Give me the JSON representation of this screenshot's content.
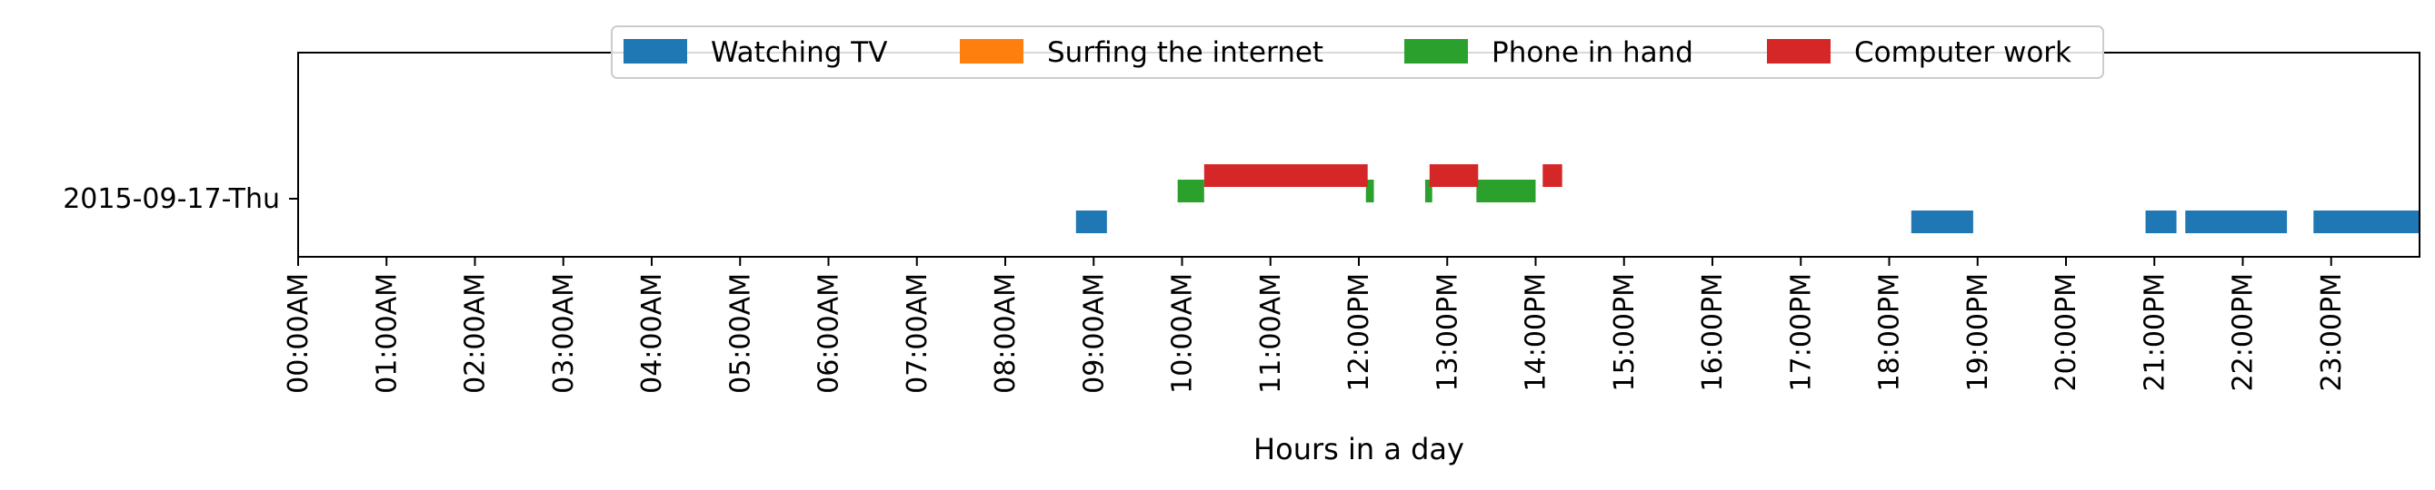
{
  "chart_data": {
    "type": "bar",
    "orientation": "horizontal",
    "title": "",
    "xlabel": "Hours in a day",
    "ylabel": "",
    "xlim": [
      0,
      24
    ],
    "x_tick_labels": [
      "00:00AM",
      "01:00AM",
      "02:00AM",
      "03:00AM",
      "04:00AM",
      "05:00AM",
      "06:00AM",
      "07:00AM",
      "08:00AM",
      "09:00AM",
      "10:00AM",
      "11:00AM",
      "12:00PM",
      "13:00PM",
      "14:00PM",
      "15:00PM",
      "16:00PM",
      "17:00PM",
      "18:00PM",
      "19:00PM",
      "20:00PM",
      "21:00PM",
      "22:00PM",
      "23:00PM"
    ],
    "categories": [
      "2015-09-17-Thu"
    ],
    "grid": false,
    "legend_placement": "upper-center",
    "series": [
      {
        "name": "Watching TV",
        "color": "#1f77b4",
        "intervals": [
          [
            8.8,
            9.15
          ],
          [
            18.25,
            18.95
          ],
          [
            20.9,
            21.25
          ],
          [
            21.35,
            22.5
          ],
          [
            22.8,
            24.0
          ]
        ]
      },
      {
        "name": "Surfing the internet",
        "color": "#ff7f0e",
        "intervals": []
      },
      {
        "name": "Phone in hand",
        "color": "#2ca02c",
        "intervals": [
          [
            9.95,
            10.25
          ],
          [
            12.08,
            12.17
          ],
          [
            12.75,
            12.83
          ],
          [
            13.33,
            14.0
          ]
        ]
      },
      {
        "name": "Computer work",
        "color": "#d62728",
        "intervals": [
          [
            10.25,
            12.1
          ],
          [
            12.8,
            13.35
          ],
          [
            14.08,
            14.3
          ]
        ]
      }
    ]
  }
}
